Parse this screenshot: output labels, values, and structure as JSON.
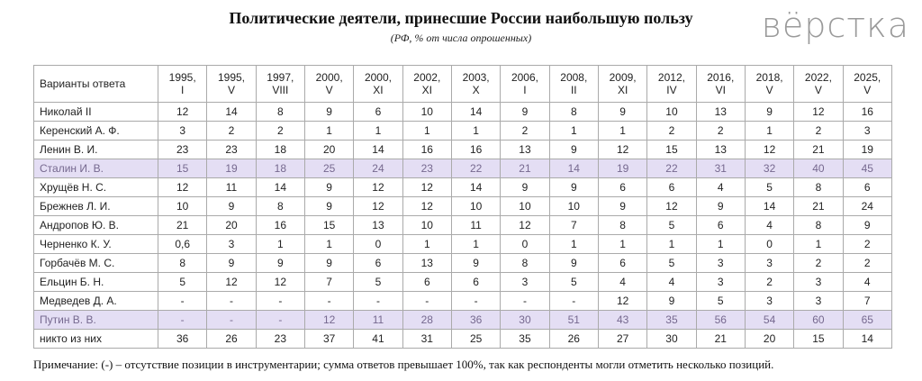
{
  "header": {
    "title": "Политические деятели, принесшие России наибольшую пользу",
    "subtitle": "(РФ, % от числа опрошенных)",
    "logo": "вёрстка"
  },
  "table": {
    "header_label": "Варианты ответа",
    "columns": [
      {
        "year": "1995,",
        "wave": "I"
      },
      {
        "year": "1995,",
        "wave": "V"
      },
      {
        "year": "1997,",
        "wave": "VIII"
      },
      {
        "year": "2000,",
        "wave": "V"
      },
      {
        "year": "2000,",
        "wave": "XI"
      },
      {
        "year": "2002,",
        "wave": "XI"
      },
      {
        "year": "2003,",
        "wave": "X"
      },
      {
        "year": "2006,",
        "wave": "I"
      },
      {
        "year": "2008,",
        "wave": "II"
      },
      {
        "year": "2009,",
        "wave": "XI"
      },
      {
        "year": "2012,",
        "wave": "IV"
      },
      {
        "year": "2016,",
        "wave": "VI"
      },
      {
        "year": "2018,",
        "wave": "V"
      },
      {
        "year": "2022,",
        "wave": "V"
      },
      {
        "year": "2025,",
        "wave": "V"
      }
    ],
    "rows": [
      {
        "label": "Николай II",
        "cells": [
          "12",
          "14",
          "8",
          "9",
          "6",
          "10",
          "14",
          "9",
          "8",
          "9",
          "10",
          "13",
          "9",
          "12",
          "16"
        ]
      },
      {
        "label": "Керенский А. Ф.",
        "cells": [
          "3",
          "2",
          "2",
          "1",
          "1",
          "1",
          "1",
          "2",
          "1",
          "1",
          "2",
          "2",
          "1",
          "2",
          "3"
        ]
      },
      {
        "label": "Ленин В. И.",
        "cells": [
          "23",
          "23",
          "18",
          "20",
          "14",
          "16",
          "16",
          "13",
          "9",
          "12",
          "15",
          "13",
          "12",
          "21",
          "19"
        ]
      },
      {
        "label": "Сталин И. В.",
        "highlight": true,
        "cells": [
          "15",
          "19",
          "18",
          "25",
          "24",
          "23",
          "22",
          "21",
          "14",
          "19",
          "22",
          "31",
          "32",
          "40",
          "45"
        ]
      },
      {
        "label": "Хрущёв Н. С.",
        "cells": [
          "12",
          "11",
          "14",
          "9",
          "12",
          "12",
          "14",
          "9",
          "9",
          "6",
          "6",
          "4",
          "5",
          "8",
          "6"
        ]
      },
      {
        "label": "Брежнев Л. И.",
        "cells": [
          "10",
          "9",
          "8",
          "9",
          "12",
          "12",
          "10",
          "10",
          "10",
          "9",
          "12",
          "9",
          "14",
          "21",
          "24"
        ]
      },
      {
        "label": "Андропов Ю. В.",
        "cells": [
          "21",
          "20",
          "16",
          "15",
          "13",
          "10",
          "11",
          "12",
          "7",
          "8",
          "5",
          "6",
          "4",
          "8",
          "9"
        ]
      },
      {
        "label": "Черненко К. У.",
        "cells": [
          "0,6",
          "3",
          "1",
          "1",
          "0",
          "1",
          "1",
          "0",
          "1",
          "1",
          "1",
          "1",
          "0",
          "1",
          "2"
        ]
      },
      {
        "label": "Горбачёв М. С.",
        "cells": [
          "8",
          "9",
          "9",
          "9",
          "6",
          "13",
          "9",
          "8",
          "9",
          "6",
          "5",
          "3",
          "3",
          "2",
          "2"
        ]
      },
      {
        "label": "Ельцин Б. Н.",
        "cells": [
          "5",
          "12",
          "12",
          "7",
          "5",
          "6",
          "6",
          "3",
          "5",
          "4",
          "4",
          "3",
          "2",
          "3",
          "4"
        ]
      },
      {
        "label": "Медведев Д. А.",
        "cells": [
          "-",
          "-",
          "-",
          "-",
          "-",
          "-",
          "-",
          "-",
          "-",
          "12",
          "9",
          "5",
          "3",
          "3",
          "7"
        ]
      },
      {
        "label": "Путин В. В.",
        "highlight": true,
        "cells": [
          "-",
          "-",
          "-",
          "12",
          "11",
          "28",
          "36",
          "30",
          "51",
          "43",
          "35",
          "56",
          "54",
          "60",
          "65"
        ]
      },
      {
        "label": "никто из них",
        "cells": [
          "36",
          "26",
          "23",
          "37",
          "41",
          "31",
          "25",
          "35",
          "26",
          "27",
          "30",
          "21",
          "20",
          "15",
          "14"
        ]
      }
    ]
  },
  "note": "Примечание: (-) – отсутствие позиции в инструментарии; сумма ответов превышает 100%, так как респонденты могли отметить несколько позиций."
}
